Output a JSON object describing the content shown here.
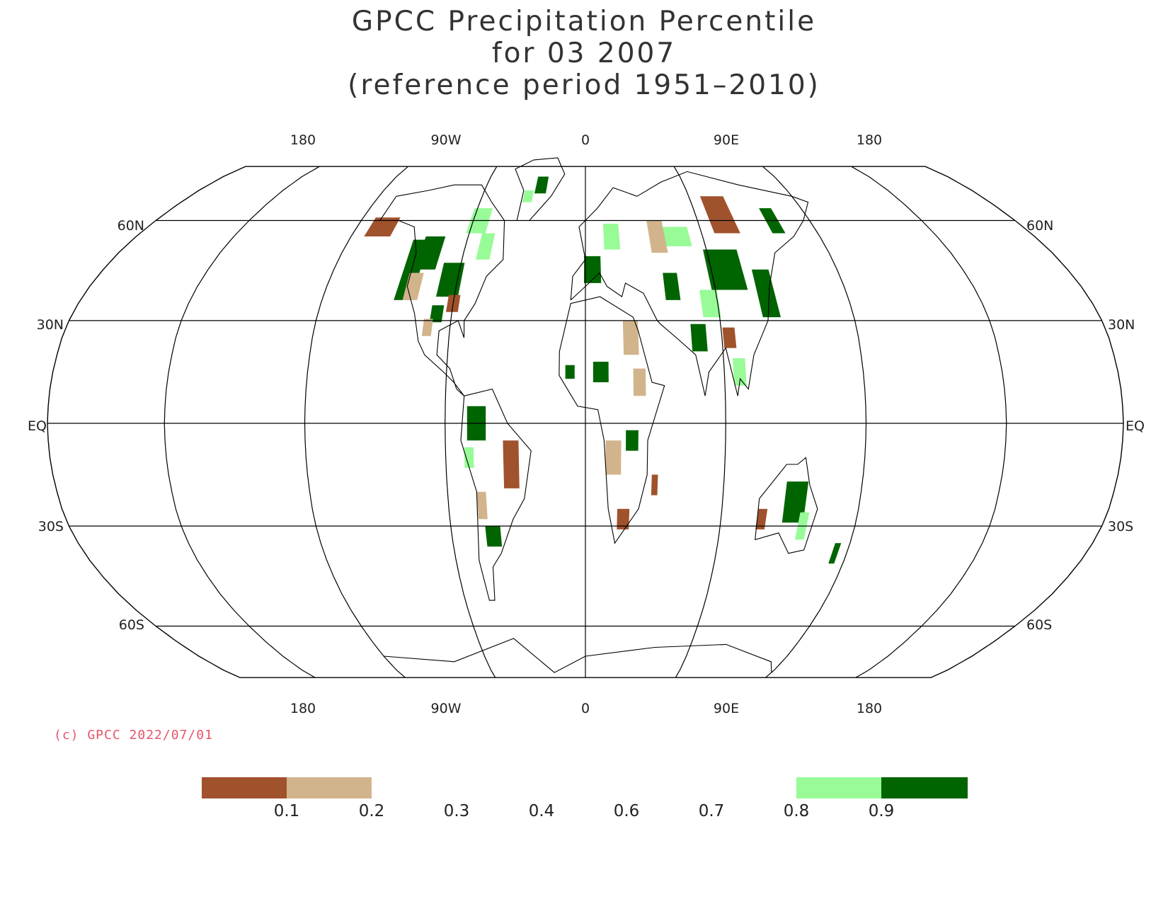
{
  "title": {
    "line1": "GPCC Precipitation Percentile",
    "line2": "for 03 2007",
    "line3": "(reference period 1951–2010)"
  },
  "map": {
    "projection": "Robinson",
    "longitude_labels": [
      "180",
      "90W",
      "0",
      "90E",
      "180"
    ],
    "latitude_labels": [
      "60N",
      "30N",
      "EQ",
      "30S",
      "60S"
    ],
    "grid": true
  },
  "copyright": "(c) GPCC 2022/07/01",
  "legend": {
    "tick_labels": [
      "0.1",
      "0.2",
      "0.3",
      "0.4",
      "0.6",
      "0.7",
      "0.8",
      "0.9"
    ],
    "swatches": [
      {
        "range": "< 0.1",
        "color": "#a0522d"
      },
      {
        "range": "0.1 - 0.2",
        "color": "#d2b48c"
      },
      {
        "range": "0.8 - 0.9",
        "color": "#98fb98"
      },
      {
        "range": "> 0.9",
        "color": "#006400"
      }
    ]
  },
  "colors": {
    "very_dry": "#a0522d",
    "dry": "#d2b48c",
    "wet": "#98fb98",
    "very_wet": "#006400"
  }
}
